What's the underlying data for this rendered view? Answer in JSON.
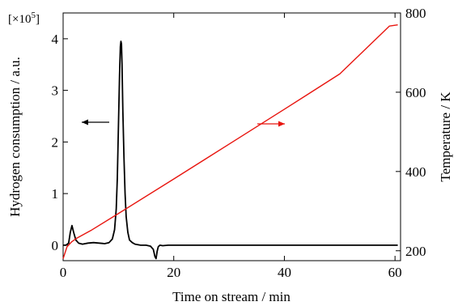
{
  "chart_data": {
    "type": "line",
    "title": "",
    "xlabel": "Time on stream / min",
    "ylabel_left": "Hydrogen consumption / a.u.",
    "ylabel_right": "Temperature / K",
    "left_axis_multiplier": "[×10",
    "left_axis_multiplier_exp": "5",
    "left_axis_multiplier_close": "]",
    "xlim": [
      0,
      61
    ],
    "ylim_left": [
      -0.3,
      4.5
    ],
    "ylim_right": [
      175,
      800
    ],
    "x_ticks": [
      0,
      20,
      40,
      60
    ],
    "x_tick_labels": [
      "0",
      "20",
      "40",
      "60"
    ],
    "left_ticks": [
      0,
      1,
      2,
      3,
      4
    ],
    "left_tick_labels": [
      "0",
      "1",
      "2",
      "3",
      "4"
    ],
    "right_ticks": [
      200,
      400,
      600,
      800
    ],
    "right_tick_labels": [
      "200",
      "400",
      "600",
      "800"
    ],
    "grid": false,
    "series": [
      {
        "axis": "left",
        "color": "#000000",
        "x": [
          0,
          0.5,
          1.0,
          1.3,
          1.6,
          1.9,
          2.3,
          2.8,
          3.5,
          4.5,
          5.5,
          6.5,
          7.5,
          8.3,
          8.9,
          9.3,
          9.6,
          9.8,
          10.0,
          10.2,
          10.35,
          10.45,
          10.55,
          10.65,
          10.8,
          11.0,
          11.2,
          11.4,
          11.7,
          12.0,
          12.5,
          13.0,
          14.0,
          15.0,
          15.8,
          16.3,
          16.6,
          16.8,
          17.0,
          17.2,
          17.5,
          18.0,
          19.0,
          20.0,
          25.0,
          30.0,
          35.0,
          40.0,
          45.0,
          50.0,
          55.0,
          60.0,
          60.5
        ],
        "y": [
          0.0,
          0.0,
          0.04,
          0.25,
          0.38,
          0.25,
          0.1,
          0.04,
          0.02,
          0.04,
          0.05,
          0.04,
          0.03,
          0.05,
          0.12,
          0.3,
          0.7,
          1.3,
          2.3,
          3.3,
          3.85,
          3.95,
          3.9,
          3.5,
          2.6,
          1.7,
          1.0,
          0.55,
          0.25,
          0.1,
          0.05,
          0.02,
          0.0,
          0.0,
          -0.02,
          -0.08,
          -0.22,
          -0.26,
          -0.12,
          -0.03,
          0.0,
          -0.01,
          0.0,
          0.0,
          0.0,
          0.0,
          0.0,
          0.0,
          0.0,
          0.0,
          0.0,
          0.0,
          0.0
        ]
      },
      {
        "axis": "right",
        "color": "#e8150f",
        "x": [
          0,
          0.7,
          1.5,
          2.5,
          5,
          10,
          20,
          30,
          40,
          50,
          59,
          60.5
        ],
        "y": [
          180,
          210,
          222,
          232,
          251,
          294,
          381,
          469,
          557,
          646,
          767,
          770
        ]
      }
    ],
    "annotations": [
      {
        "type": "arrow",
        "direction": "left",
        "color": "#000000"
      },
      {
        "type": "arrow",
        "direction": "right",
        "color": "#e8150f"
      }
    ]
  }
}
